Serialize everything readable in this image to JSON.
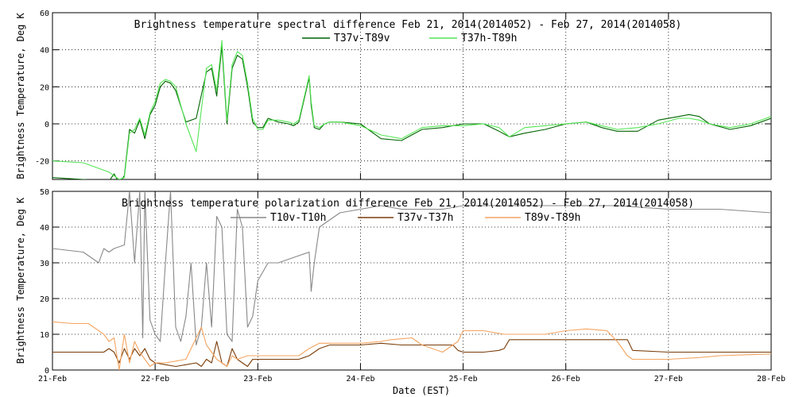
{
  "xlabel": "Date (EST)",
  "x_ticks": [
    "21-Feb",
    "22-Feb",
    "23-Feb",
    "24-Feb",
    "25-Feb",
    "26-Feb",
    "27-Feb",
    "28-Feb"
  ],
  "chart_data": [
    {
      "type": "line",
      "title": "Brightness temperature spectral difference     Feb 21, 2014(2014052) - Feb 27, 2014(2014058)",
      "ylabel": "Brightness Temperature, Deg K",
      "xlim": [
        0,
        7
      ],
      "ylim": [
        -30,
        60
      ],
      "y_ticks": [
        -20,
        0,
        20,
        40,
        60
      ],
      "grid": "dotted",
      "legend": "top-center",
      "series": [
        {
          "name": "T37v-T89v",
          "color": "#006400",
          "x": [
            0,
            0.3,
            0.55,
            0.6,
            0.65,
            0.7,
            0.75,
            0.8,
            0.85,
            0.9,
            0.95,
            1.0,
            1.05,
            1.1,
            1.15,
            1.2,
            1.3,
            1.4,
            1.5,
            1.55,
            1.6,
            1.65,
            1.7,
            1.75,
            1.8,
            1.85,
            1.9,
            1.95,
            2.0,
            2.05,
            2.1,
            2.2,
            2.3,
            2.35,
            2.4,
            2.5,
            2.52,
            2.55,
            2.6,
            2.65,
            2.7,
            2.8,
            3.0,
            3.2,
            3.4,
            3.6,
            3.8,
            4.0,
            4.2,
            4.35,
            4.45,
            4.6,
            4.8,
            5.0,
            5.2,
            5.35,
            5.5,
            5.7,
            5.9,
            6.1,
            6.2,
            6.3,
            6.4,
            6.6,
            6.8,
            7.0
          ],
          "values": [
            -29,
            -30,
            -31,
            -27,
            -32,
            -28,
            -3,
            -5,
            2,
            -8,
            5,
            10,
            20,
            23,
            22,
            18,
            1,
            3,
            28,
            30,
            15,
            42,
            0,
            30,
            37,
            35,
            20,
            1,
            -2,
            -2,
            3,
            1,
            0,
            -1,
            1,
            25,
            10,
            -2,
            -3,
            0,
            1,
            1,
            0,
            -8,
            -9,
            -3,
            -2,
            0,
            0,
            -4,
            -7,
            -5,
            -3,
            0,
            1,
            -2,
            -4,
            -4,
            2,
            4,
            5,
            4,
            0,
            -3,
            -1,
            3
          ]
        },
        {
          "name": "T37h-T89h",
          "color": "#55e655",
          "x": [
            0,
            0.3,
            0.55,
            0.6,
            0.65,
            0.7,
            0.75,
            0.8,
            0.85,
            0.9,
            0.95,
            1.0,
            1.05,
            1.1,
            1.15,
            1.2,
            1.3,
            1.4,
            1.5,
            1.55,
            1.6,
            1.65,
            1.7,
            1.75,
            1.8,
            1.85,
            1.9,
            1.95,
            2.0,
            2.05,
            2.1,
            2.2,
            2.3,
            2.35,
            2.4,
            2.5,
            2.52,
            2.55,
            2.6,
            2.65,
            2.7,
            2.8,
            3.0,
            3.2,
            3.4,
            3.6,
            3.8,
            4.0,
            4.2,
            4.35,
            4.45,
            4.6,
            4.8,
            5.0,
            5.2,
            5.35,
            5.5,
            5.7,
            5.9,
            6.1,
            6.2,
            6.3,
            6.4,
            6.6,
            6.8,
            7.0
          ],
          "values": [
            -20,
            -21,
            -26,
            -28,
            -30,
            -29,
            -5,
            -3,
            3,
            -6,
            6,
            12,
            22,
            24,
            23,
            20,
            0,
            -15,
            30,
            32,
            18,
            45,
            2,
            32,
            39,
            37,
            22,
            3,
            -3,
            -3,
            2,
            2,
            1,
            0,
            2,
            26,
            12,
            -1,
            -2,
            0,
            1,
            1,
            -1,
            -6,
            -8,
            -2,
            -1,
            -1,
            0,
            -2,
            -7,
            -2,
            -1,
            0,
            1,
            -1,
            -3,
            -2,
            0,
            3,
            3,
            2,
            0,
            -2,
            0,
            4
          ]
        }
      ]
    },
    {
      "type": "line",
      "title": "Brightness temperature polarization difference     Feb 21, 2014(2014052) - Feb 27, 2014(2014058)",
      "ylabel": "Brightness Temperature, Deg K",
      "xlim": [
        0,
        7
      ],
      "ylim": [
        0,
        50
      ],
      "y_ticks": [
        0,
        10,
        20,
        30,
        40,
        50
      ],
      "grid": "dotted",
      "legend": "top-center",
      "series": [
        {
          "name": "T10v-T10h",
          "color": "#888888",
          "x": [
            0,
            0.3,
            0.45,
            0.5,
            0.55,
            0.6,
            0.7,
            0.75,
            0.8,
            0.85,
            0.88,
            0.9,
            0.95,
            1.0,
            1.05,
            1.1,
            1.15,
            1.2,
            1.25,
            1.3,
            1.35,
            1.4,
            1.45,
            1.5,
            1.55,
            1.6,
            1.65,
            1.7,
            1.75,
            1.8,
            1.85,
            1.9,
            1.95,
            2.0,
            2.1,
            2.2,
            2.3,
            2.4,
            2.5,
            2.52,
            2.55,
            2.6,
            2.65,
            2.7,
            2.8,
            3.0,
            3.2,
            3.4,
            3.6,
            3.8,
            4.0,
            4.5,
            5.0,
            5.5,
            6.0,
            6.5,
            7.0
          ],
          "values": [
            34,
            33,
            30,
            34,
            33,
            34,
            35,
            50,
            30,
            50,
            9,
            50,
            14,
            10,
            8,
            30,
            50,
            12,
            8,
            15,
            30,
            7,
            12,
            30,
            12,
            43,
            40,
            10,
            8,
            45,
            40,
            12,
            15,
            25,
            30,
            30,
            31,
            32,
            33,
            22,
            30,
            40,
            41,
            42,
            44,
            45,
            46,
            45,
            45,
            45,
            46,
            46,
            46,
            46,
            45,
            45,
            44
          ]
        },
        {
          "name": "T37v-T37h",
          "color": "#7a3d0a",
          "x": [
            0,
            0.4,
            0.5,
            0.55,
            0.6,
            0.65,
            0.7,
            0.75,
            0.8,
            0.85,
            0.9,
            0.95,
            1.0,
            1.1,
            1.2,
            1.3,
            1.4,
            1.45,
            1.5,
            1.55,
            1.6,
            1.65,
            1.7,
            1.75,
            1.8,
            1.85,
            1.9,
            1.95,
            2.0,
            2.2,
            2.4,
            2.5,
            2.6,
            2.7,
            2.8,
            3.0,
            3.2,
            3.4,
            3.6,
            3.8,
            3.9,
            3.95,
            4.0,
            4.2,
            4.35,
            4.4,
            4.45,
            4.6,
            4.8,
            5.0,
            5.2,
            5.4,
            5.5,
            5.6,
            5.65,
            6.0,
            6.5,
            7.0
          ],
          "values": [
            5,
            5,
            5,
            6,
            5,
            2,
            6,
            3,
            6,
            4,
            6,
            3,
            2,
            1.5,
            1,
            1.5,
            2,
            1,
            3,
            2,
            8,
            2,
            1,
            6,
            3,
            2,
            1,
            3,
            3,
            3,
            3,
            4,
            6,
            7,
            7,
            7,
            7.5,
            7,
            7,
            7,
            7,
            5.5,
            5,
            5,
            5.5,
            6,
            8.5,
            8.5,
            8.5,
            8.5,
            8.5,
            8.5,
            8.5,
            8.5,
            5.5,
            5,
            5,
            5
          ]
        },
        {
          "name": "T89v-T89h",
          "color": "#f4a460",
          "x": [
            0,
            0.2,
            0.35,
            0.4,
            0.5,
            0.55,
            0.6,
            0.65,
            0.7,
            0.75,
            0.8,
            0.85,
            0.9,
            0.95,
            1.0,
            1.1,
            1.2,
            1.3,
            1.4,
            1.45,
            1.5,
            1.55,
            1.6,
            1.65,
            1.7,
            1.75,
            1.8,
            1.9,
            2.0,
            2.2,
            2.4,
            2.5,
            2.6,
            2.8,
            3.0,
            3.2,
            3.3,
            3.5,
            3.6,
            3.8,
            3.95,
            4.0,
            4.2,
            4.3,
            4.4,
            4.5,
            4.8,
            5.0,
            5.2,
            5.4,
            5.5,
            5.6,
            5.65,
            5.8,
            6.0,
            6.3,
            6.5,
            7.0
          ],
          "values": [
            13.5,
            13,
            13,
            12,
            10,
            8,
            9,
            0,
            10,
            2,
            8,
            5,
            3,
            1,
            2,
            2,
            2.5,
            3,
            9,
            12,
            7,
            5,
            3,
            2,
            1,
            4,
            3,
            4,
            4,
            4,
            4,
            6,
            7.5,
            7.5,
            7.5,
            8,
            8.5,
            9,
            7,
            5,
            8,
            11,
            11,
            10.5,
            10,
            10,
            10,
            11,
            11.5,
            11,
            8,
            4,
            3,
            3,
            3,
            3.5,
            4,
            4.5
          ]
        }
      ]
    }
  ]
}
